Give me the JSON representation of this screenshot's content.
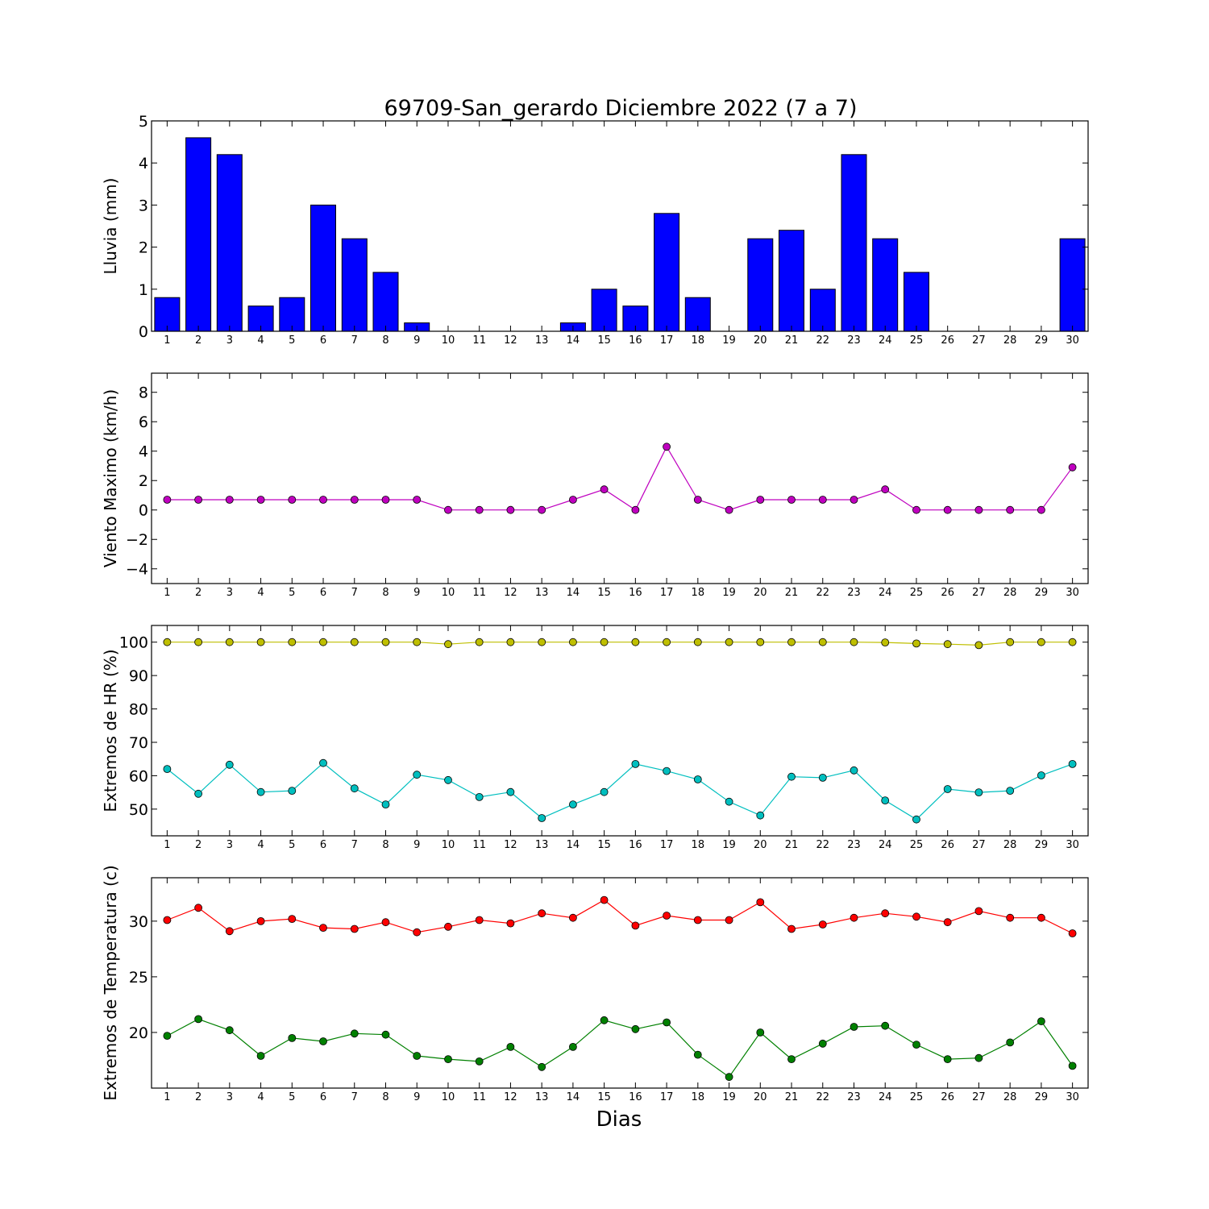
{
  "title": "69709-San_gerardo Diciembre 2022  (7 a 7)",
  "xlabel": "Dias",
  "chart_data": [
    {
      "type": "bar",
      "ylabel": "Lluvia (mm)",
      "x": [
        1,
        2,
        3,
        4,
        5,
        6,
        7,
        8,
        9,
        10,
        11,
        12,
        13,
        14,
        15,
        16,
        17,
        18,
        19,
        20,
        21,
        22,
        23,
        24,
        25,
        26,
        27,
        28,
        29,
        30
      ],
      "ylim": [
        0,
        5
      ],
      "yticks": [
        0,
        1,
        2,
        3,
        4,
        5
      ],
      "grid": false,
      "series": [
        {
          "color": "#0000ff",
          "values": [
            0.8,
            4.6,
            4.2,
            0.6,
            0.8,
            3.0,
            2.2,
            1.4,
            0.2,
            0,
            0,
            0,
            0,
            0.2,
            1.0,
            0.6,
            2.8,
            0.8,
            0,
            2.2,
            2.4,
            1.0,
            4.2,
            2.2,
            1.4,
            0,
            0,
            0,
            0,
            2.2
          ]
        }
      ]
    },
    {
      "type": "line",
      "ylabel": "Viento Maximo (km/h)",
      "x": [
        1,
        2,
        3,
        4,
        5,
        6,
        7,
        8,
        9,
        10,
        11,
        12,
        13,
        14,
        15,
        16,
        17,
        18,
        19,
        20,
        21,
        22,
        23,
        24,
        25,
        26,
        27,
        28,
        29,
        30
      ],
      "ylim": [
        -5,
        9.3
      ],
      "yticks": [
        -4,
        -2,
        0,
        2,
        4,
        6,
        8
      ],
      "grid": false,
      "series": [
        {
          "color": "#bf00bf",
          "values": [
            0.7,
            0.7,
            0.7,
            0.7,
            0.7,
            0.7,
            0.7,
            0.7,
            0.7,
            0,
            0,
            0,
            0,
            0.7,
            1.4,
            0,
            4.3,
            0.7,
            0,
            0.7,
            0.7,
            0.7,
            0.7,
            1.4,
            0,
            0,
            0,
            0,
            0,
            2.9
          ]
        }
      ]
    },
    {
      "type": "line",
      "ylabel": "Extremos de HR (%)",
      "x": [
        1,
        2,
        3,
        4,
        5,
        6,
        7,
        8,
        9,
        10,
        11,
        12,
        13,
        14,
        15,
        16,
        17,
        18,
        19,
        20,
        21,
        22,
        23,
        24,
        25,
        26,
        27,
        28,
        29,
        30
      ],
      "ylim": [
        42,
        105
      ],
      "yticks": [
        50,
        60,
        70,
        80,
        90,
        100
      ],
      "grid": false,
      "series": [
        {
          "color": "#bfbf00",
          "values": [
            100,
            100,
            100,
            100,
            100,
            100,
            100,
            100,
            100,
            99.4,
            100,
            100,
            100,
            100,
            100,
            100,
            100,
            100,
            100,
            100,
            100,
            100,
            100,
            99.9,
            99.6,
            99.4,
            99.1,
            100,
            100,
            100
          ]
        },
        {
          "color": "#00bfbf",
          "values": [
            62,
            54.6,
            63.3,
            55.1,
            55.5,
            63.8,
            56.2,
            51.4,
            60.3,
            58.7,
            53.6,
            55.1,
            47.3,
            51.4,
            55.1,
            63.5,
            61.4,
            58.9,
            52.2,
            48.1,
            59.7,
            59.4,
            61.6,
            52.6,
            46.9,
            56,
            55,
            55.5,
            60.1,
            63.5
          ]
        }
      ]
    },
    {
      "type": "line",
      "ylabel": "Extremos de Temperatura (c)",
      "x": [
        1,
        2,
        3,
        4,
        5,
        6,
        7,
        8,
        9,
        10,
        11,
        12,
        13,
        14,
        15,
        16,
        17,
        18,
        19,
        20,
        21,
        22,
        23,
        24,
        25,
        26,
        27,
        28,
        29,
        30
      ],
      "ylim": [
        15,
        33.9
      ],
      "yticks": [
        20,
        25,
        30
      ],
      "grid": false,
      "series": [
        {
          "color": "#ff0000",
          "values": [
            30.1,
            31.2,
            29.1,
            30,
            30.2,
            29.4,
            29.3,
            29.9,
            29,
            29.5,
            30.1,
            29.8,
            30.7,
            30.3,
            31.9,
            29.6,
            30.5,
            30.1,
            30.1,
            31.7,
            29.3,
            29.7,
            30.3,
            30.7,
            30.4,
            29.9,
            30.9,
            30.3,
            30.3,
            28.9
          ]
        },
        {
          "color": "#008000",
          "values": [
            19.7,
            21.2,
            20.2,
            17.9,
            19.5,
            19.2,
            19.9,
            19.8,
            17.9,
            17.6,
            17.4,
            18.7,
            16.9,
            18.7,
            21.1,
            20.3,
            20.9,
            18,
            16,
            20,
            17.6,
            19,
            20.5,
            20.6,
            18.9,
            17.6,
            17.7,
            19.1,
            21,
            17
          ]
        }
      ]
    }
  ]
}
